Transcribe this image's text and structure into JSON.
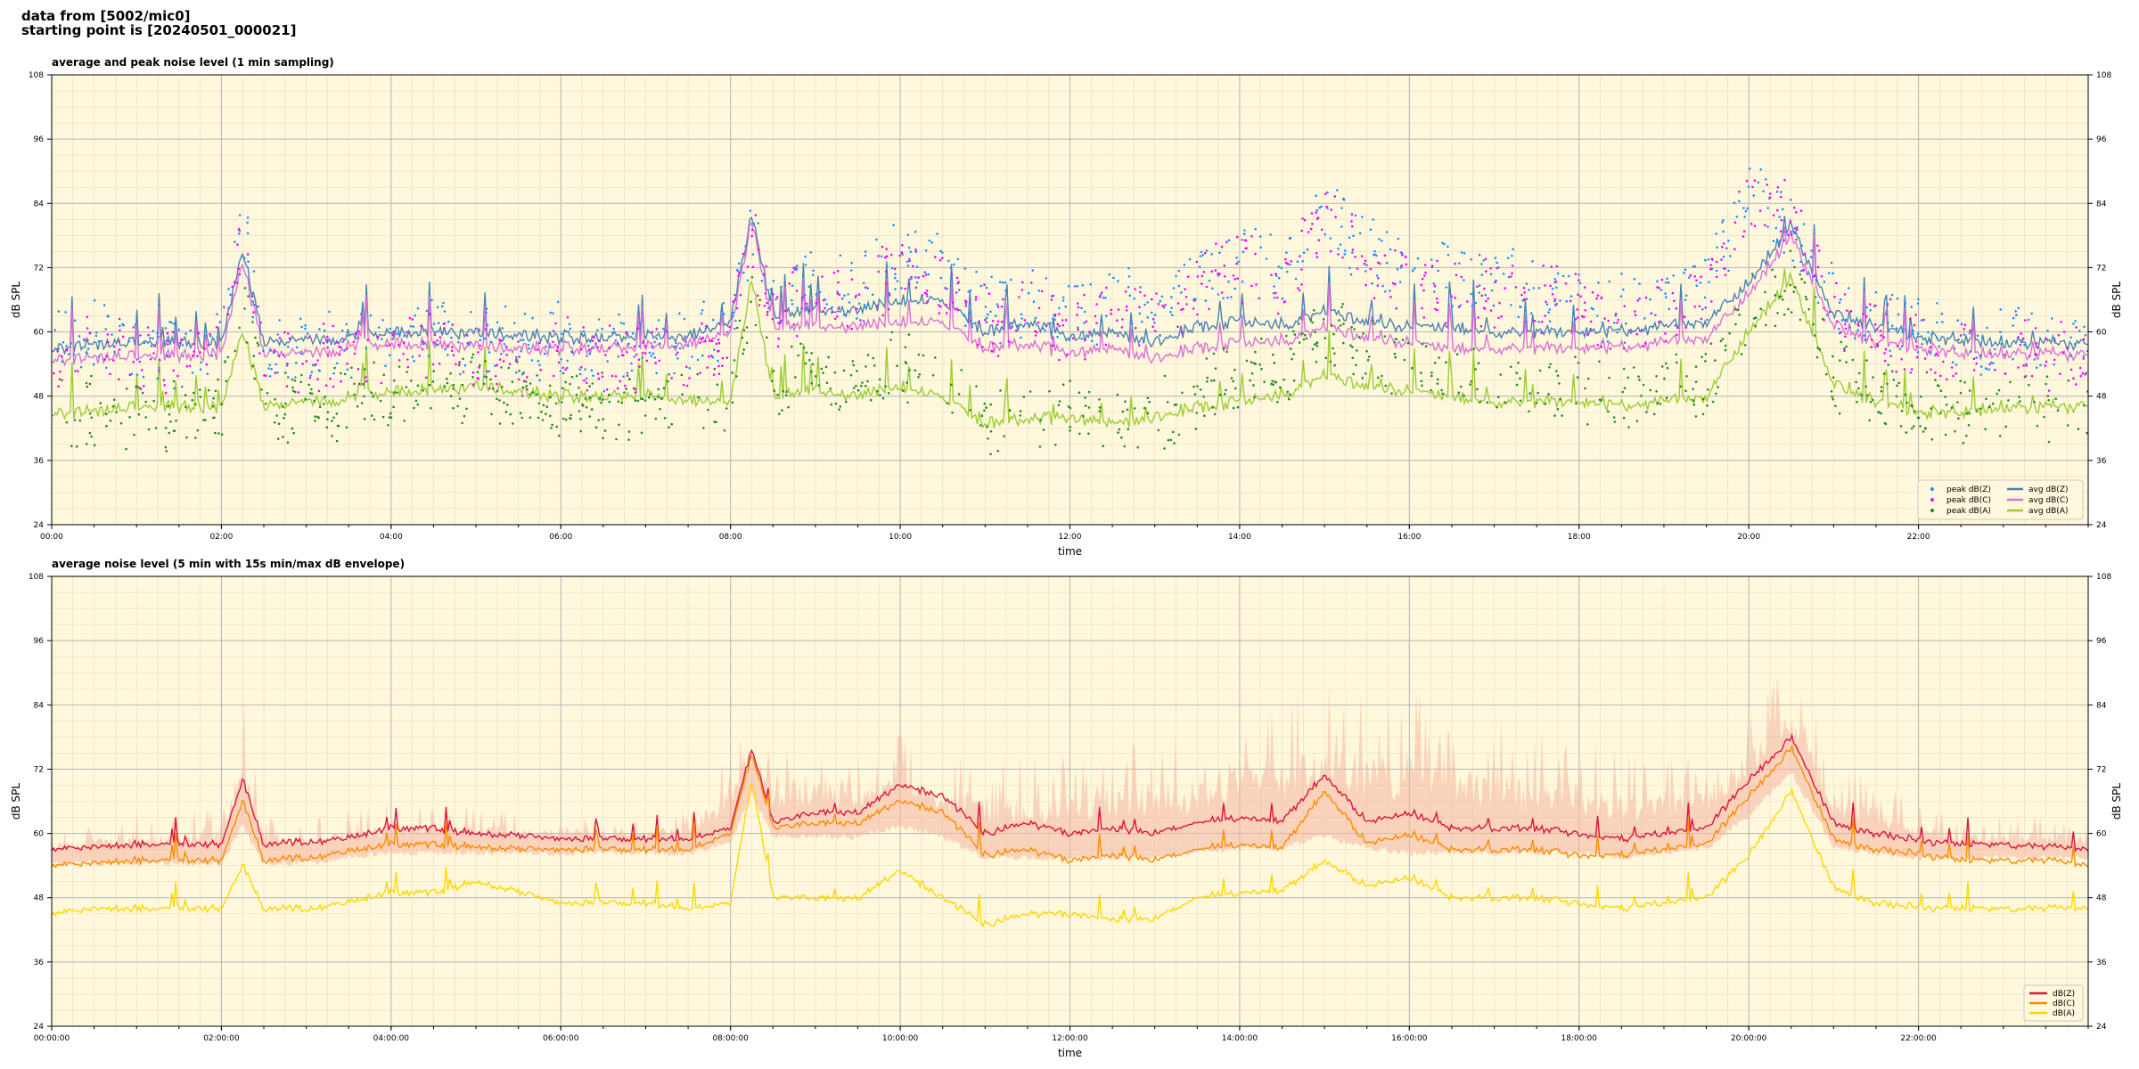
{
  "header": {
    "line1": "data from [5002/mic0]",
    "line2": "starting point is [20240501_000021]"
  },
  "colors": {
    "plot_bg": "#fff8dc",
    "grid_major": "#b4b4b4",
    "grid_minor": "#e6dcc0",
    "peak_z": "#1e90ff",
    "peak_c": "#ff00ff",
    "peak_a": "#228b22",
    "avg_z": "#4682b4",
    "avg_c": "#da70d6",
    "avg_a": "#9acd32",
    "db_z": "#dc143c",
    "db_c": "#ff8c00",
    "db_a": "#ffd700",
    "envelope": "#f4b4a0"
  },
  "chart_data": [
    {
      "type": "line",
      "title": "average and peak noise level (1 min sampling)",
      "xlabel": "time",
      "ylabel": "dB SPL",
      "ylabel_right": "dB SPL",
      "xlim": [
        0,
        24
      ],
      "ylim": [
        24,
        108
      ],
      "xticks": [
        0,
        2,
        4,
        6,
        8,
        10,
        12,
        14,
        16,
        18,
        20,
        22
      ],
      "xtick_labels": [
        "00:00",
        "02:00",
        "04:00",
        "06:00",
        "08:00",
        "10:00",
        "12:00",
        "14:00",
        "16:00",
        "18:00",
        "20:00",
        "22:00"
      ],
      "yticks": [
        24,
        36,
        48,
        60,
        72,
        84,
        96,
        108
      ],
      "ytick_labels": [
        "24",
        "36",
        "48",
        "60",
        "72",
        "84",
        "96",
        "108"
      ],
      "grid": true,
      "legend_position": "bottom-right",
      "legend": [
        {
          "label": "peak dB(Z)",
          "kind": "dot",
          "color": "#1e90ff"
        },
        {
          "label": "avg dB(Z)",
          "kind": "line",
          "color": "#4682b4"
        },
        {
          "label": "peak dB(C)",
          "kind": "dot",
          "color": "#ff00ff"
        },
        {
          "label": "avg dB(C)",
          "kind": "line",
          "color": "#da70d6"
        },
        {
          "label": "peak dB(A)",
          "kind": "dot",
          "color": "#228b22"
        },
        {
          "label": "avg dB(A)",
          "kind": "line",
          "color": "#9acd32"
        }
      ],
      "x": [
        0,
        0.5,
        1,
        1.5,
        2,
        2.25,
        2.5,
        3,
        3.5,
        4,
        4.5,
        5,
        5.5,
        6,
        6.5,
        7,
        7.5,
        8,
        8.25,
        8.5,
        9,
        9.5,
        10,
        10.5,
        11,
        11.5,
        12,
        12.5,
        13,
        13.5,
        14,
        14.5,
        15,
        15.5,
        16,
        16.5,
        17,
        17.5,
        18,
        18.5,
        19,
        19.5,
        20,
        20.5,
        21,
        21.5,
        22,
        22.5,
        23,
        23.5,
        24
      ],
      "series": [
        {
          "name": "avg dB(Z)",
          "color": "#4682b4",
          "values": [
            57,
            57.5,
            58,
            58,
            58,
            75,
            58,
            58.5,
            59,
            60,
            60,
            60,
            59.5,
            59,
            59,
            59,
            59,
            62,
            82,
            63,
            64,
            64,
            66,
            66,
            60,
            62,
            59,
            60,
            58,
            61,
            62,
            61,
            64,
            62,
            61,
            61,
            60,
            60,
            60,
            60,
            61,
            62,
            69,
            80,
            63,
            61,
            59,
            58.5,
            58,
            58,
            57.5
          ]
        },
        {
          "name": "avg dB(C)",
          "color": "#da70d6",
          "values": [
            55,
            55,
            55.5,
            55.5,
            56,
            73,
            56,
            56,
            57,
            58,
            57.5,
            57.5,
            57,
            57,
            57,
            57,
            57.5,
            60,
            81,
            61,
            61,
            61,
            62,
            62,
            57,
            58,
            56,
            57,
            55,
            57,
            58,
            58,
            61,
            59,
            58,
            57,
            57,
            57,
            57,
            57,
            58,
            59,
            67,
            78,
            61,
            58,
            57,
            56,
            56,
            56,
            55.5
          ]
        },
        {
          "name": "avg dB(A)",
          "color": "#9acd32",
          "values": [
            45,
            45,
            46,
            46,
            46,
            60,
            46,
            47,
            47.5,
            49,
            49,
            50,
            49,
            48,
            48,
            48,
            47,
            47,
            70,
            48,
            49,
            48,
            50,
            48,
            43,
            44,
            44,
            43,
            44,
            46,
            47,
            48,
            52,
            50,
            49,
            48,
            47,
            47,
            47,
            46,
            47,
            48,
            60,
            70,
            50,
            47,
            45,
            45,
            46,
            46,
            46
          ]
        },
        {
          "name": "peak dB(Z)",
          "color": "#1e90ff",
          "kind": "dots",
          "values": [
            64,
            66,
            62,
            62,
            64,
            86,
            63,
            62,
            63,
            65,
            66,
            64,
            63,
            65,
            62,
            63,
            64,
            68,
            84,
            72,
            76,
            74,
            80,
            78,
            70,
            72,
            68,
            72,
            70,
            76,
            80,
            78,
            88,
            80,
            78,
            76,
            76,
            74,
            72,
            70,
            72,
            74,
            92,
            86,
            72,
            68,
            66,
            64,
            64,
            64,
            62
          ]
        },
        {
          "name": "peak dB(C)",
          "color": "#ff00ff",
          "kind": "dots",
          "values": [
            62,
            63,
            61,
            60,
            62,
            84,
            61,
            60,
            61,
            63,
            63,
            62,
            61,
            62,
            60,
            61,
            62,
            66,
            83,
            70,
            74,
            72,
            78,
            76,
            68,
            70,
            66,
            70,
            68,
            74,
            78,
            76,
            87,
            78,
            76,
            74,
            74,
            72,
            70,
            68,
            70,
            72,
            90,
            88,
            70,
            66,
            64,
            62,
            62,
            62,
            60
          ]
        },
        {
          "name": "peak dB(A)",
          "color": "#228b22",
          "kind": "dots",
          "values": [
            50,
            52,
            50,
            50,
            52,
            74,
            52,
            52,
            53,
            55,
            56,
            56,
            54,
            53,
            52,
            52,
            52,
            54,
            74,
            56,
            58,
            56,
            60,
            56,
            50,
            52,
            50,
            50,
            50,
            54,
            58,
            58,
            66,
            62,
            60,
            58,
            56,
            56,
            55,
            54,
            55,
            56,
            70,
            76,
            58,
            54,
            52,
            51,
            52,
            52,
            52
          ]
        }
      ]
    },
    {
      "type": "line",
      "title": "average noise level (5 min with 15s min/max dB envelope)",
      "xlabel": "time",
      "ylabel": "dB SPL",
      "ylabel_right": "dB SPL",
      "xlim": [
        0,
        24
      ],
      "ylim": [
        24,
        108
      ],
      "xticks": [
        0,
        2,
        4,
        6,
        8,
        10,
        12,
        14,
        16,
        18,
        20,
        22
      ],
      "xtick_labels": [
        "00:00:00",
        "02:00:00",
        "04:00:00",
        "06:00:00",
        "08:00:00",
        "10:00:00",
        "12:00:00",
        "14:00:00",
        "16:00:00",
        "18:00:00",
        "20:00:00",
        "22:00:00"
      ],
      "yticks": [
        24,
        36,
        48,
        60,
        72,
        84,
        96,
        108
      ],
      "ytick_labels": [
        "24",
        "36",
        "48",
        "60",
        "72",
        "84",
        "96",
        "108"
      ],
      "grid": true,
      "legend_position": "bottom-right",
      "legend": [
        {
          "label": "dB(Z)",
          "kind": "line",
          "color": "#dc143c"
        },
        {
          "label": "dB(C)",
          "kind": "line",
          "color": "#ff8c00"
        },
        {
          "label": "dB(A)",
          "kind": "line",
          "color": "#ffd700"
        }
      ],
      "x": [
        0,
        0.5,
        1,
        1.5,
        2,
        2.25,
        2.5,
        3,
        3.5,
        4,
        4.5,
        5,
        5.5,
        6,
        6.5,
        7,
        7.5,
        8,
        8.25,
        8.5,
        9,
        9.5,
        10,
        10.5,
        11,
        11.5,
        12,
        12.5,
        13,
        13.5,
        14,
        14.5,
        15,
        15.5,
        16,
        16.5,
        17,
        17.5,
        18,
        18.5,
        19,
        19.5,
        20,
        20.5,
        21,
        21.5,
        22,
        22.5,
        23,
        23.5,
        24
      ],
      "envelope_max": [
        60,
        61,
        62,
        62,
        64,
        82,
        62,
        62,
        63,
        64,
        64,
        64,
        63,
        63,
        62,
        62,
        64,
        72,
        80,
        72,
        74,
        72,
        76,
        72,
        70,
        72,
        72,
        74,
        76,
        76,
        80,
        80,
        84,
        80,
        82,
        78,
        78,
        76,
        76,
        72,
        72,
        72,
        80,
        88,
        72,
        68,
        64,
        62,
        62,
        62,
        61
      ],
      "envelope_min": [
        55,
        55,
        55,
        55,
        55,
        62,
        55,
        55,
        56,
        57,
        57,
        57,
        57,
        57,
        57,
        57,
        57,
        59,
        68,
        60,
        60,
        60,
        62,
        60,
        56,
        56,
        56,
        56,
        56,
        57,
        58,
        58,
        60,
        58,
        57,
        57,
        57,
        57,
        57,
        56,
        57,
        58,
        64,
        72,
        58,
        57,
        56,
        56,
        56,
        56,
        56
      ],
      "series": [
        {
          "name": "dB(Z)",
          "color": "#dc143c",
          "values": [
            57,
            57.5,
            58,
            58,
            58,
            70,
            58,
            58.5,
            59,
            61,
            61,
            60,
            59.5,
            59,
            59,
            59,
            59,
            61,
            76,
            62,
            64,
            64,
            69,
            67,
            60,
            62,
            60,
            61,
            60,
            62,
            63,
            62,
            71,
            62,
            64,
            61,
            61,
            61,
            60,
            59,
            60,
            61,
            70,
            78,
            62,
            60,
            58.5,
            58,
            58,
            57.5,
            57
          ]
        },
        {
          "name": "dB(C)",
          "color": "#ff8c00",
          "values": [
            54,
            54.5,
            55,
            55,
            55,
            66,
            55,
            55.5,
            56.5,
            58,
            58,
            57.5,
            57,
            57,
            57,
            57,
            57,
            60,
            75,
            61,
            62,
            62,
            66,
            64,
            56,
            57,
            55,
            56,
            55,
            57,
            58,
            57,
            68,
            58,
            60,
            57,
            57,
            57,
            56,
            56,
            57,
            58,
            67,
            76,
            59,
            57,
            56,
            55,
            55,
            55,
            54
          ]
        },
        {
          "name": "dB(A)",
          "color": "#ffd700",
          "values": [
            45,
            46,
            46,
            46,
            46,
            54,
            46,
            46,
            47,
            49,
            49,
            51,
            49,
            47,
            47,
            47,
            46,
            47,
            70,
            48,
            48,
            48,
            53,
            48,
            43,
            45,
            45,
            44,
            44,
            48,
            49,
            49,
            55,
            50,
            52,
            48,
            48,
            48,
            47,
            46,
            47,
            48,
            56,
            68,
            50,
            47,
            46,
            46,
            46,
            46,
            46
          ]
        }
      ]
    }
  ]
}
